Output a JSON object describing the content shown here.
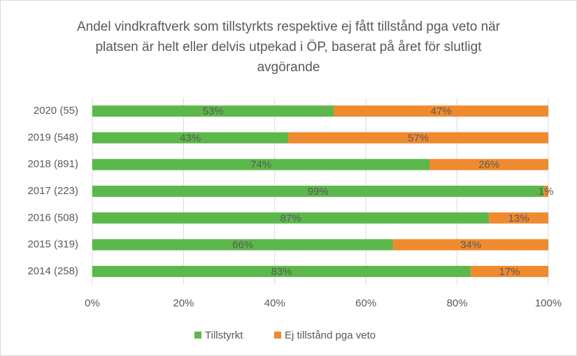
{
  "chart_data": {
    "type": "stacked-bar-horizontal",
    "title": "Andel vindkraftverk som tillstyrkts respektive ej fått tillstånd pga veto när platsen är helt eller delvis utpekad i ÖP, baserat på året för slutligt avgörande",
    "categories": [
      "2020 (55)",
      "2019 (548)",
      "2018 (891)",
      "2017 (223)",
      "2016 (508)",
      "2015 (319)",
      "2014 (258)"
    ],
    "series": [
      {
        "name": "Tillstyrkt",
        "color": "#5cb84a",
        "values": [
          53,
          43,
          74,
          99,
          87,
          66,
          83
        ],
        "value_labels": [
          "53%",
          "43%",
          "74%",
          "99%",
          "87%",
          "66%",
          "83%"
        ]
      },
      {
        "name": "Ej tillstånd pga veto",
        "color": "#f08a2e",
        "values": [
          47,
          57,
          26,
          1,
          13,
          34,
          17
        ],
        "value_labels": [
          "47%",
          "57%",
          "26%",
          "1%",
          "13%",
          "34%",
          "17%"
        ]
      }
    ],
    "xlim": [
      0,
      100
    ],
    "xticks": [
      {
        "value": 0,
        "label": "0%"
      },
      {
        "value": 20,
        "label": "20%"
      },
      {
        "value": 40,
        "label": "40%"
      },
      {
        "value": 60,
        "label": "60%"
      },
      {
        "value": 80,
        "label": "80%"
      },
      {
        "value": 100,
        "label": "100%"
      }
    ],
    "grid": true,
    "legend": "bottom"
  }
}
